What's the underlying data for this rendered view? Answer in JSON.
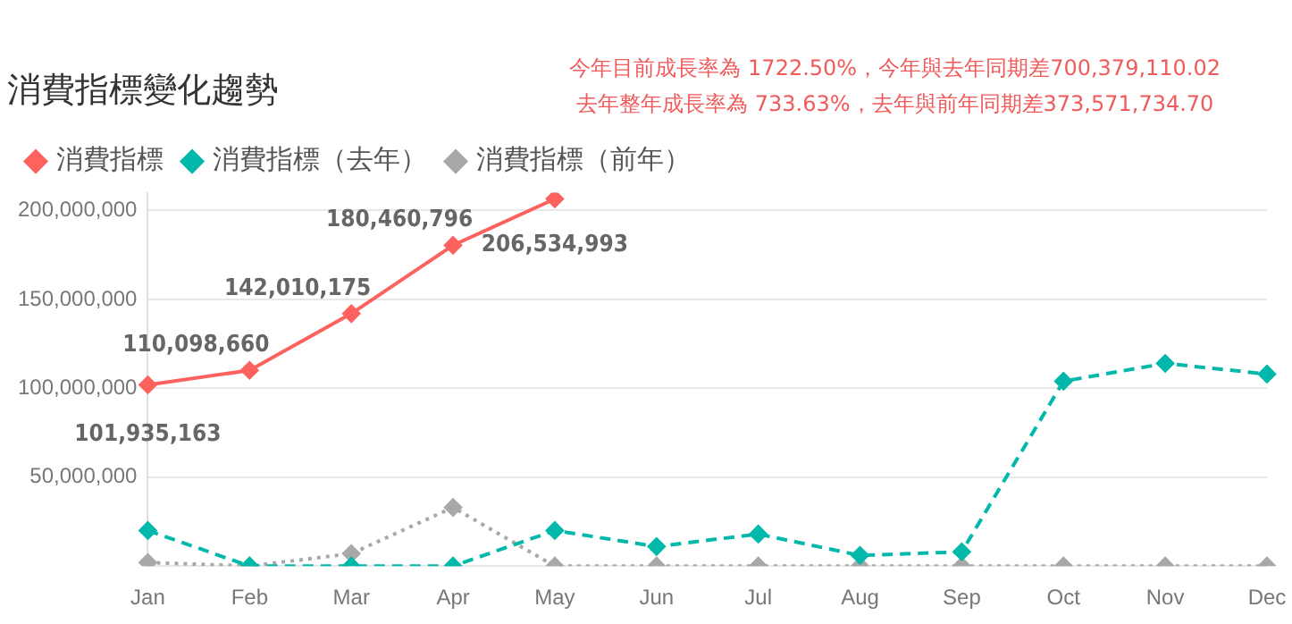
{
  "chart_data": {
    "type": "line",
    "title": "消費指標變化趨勢",
    "annotations": [
      "今年目前成長率為 1722.50%，今年與去年同期差700,379,110.02",
      "去年整年成長率為 733.63%，去年與前年同期差373,571,734.70"
    ],
    "categories": [
      "Jan",
      "Feb",
      "Mar",
      "Apr",
      "May",
      "Jun",
      "Jul",
      "Aug",
      "Sep",
      "Oct",
      "Nov",
      "Dec"
    ],
    "series": [
      {
        "name": "消費指標",
        "color": "#fd625e",
        "line_style": "solid",
        "values": [
          101935163,
          110098660,
          142010175,
          180460796,
          206534993,
          null,
          null,
          null,
          null,
          null,
          null,
          null
        ],
        "value_labels": [
          "101,935,163",
          "110,098,660",
          "142,010,175",
          "180,460,796",
          "206,534,993",
          null,
          null,
          null,
          null,
          null,
          null,
          null
        ]
      },
      {
        "name": "消費指標（去年）",
        "color": "#01b8aa",
        "line_style": "dashed",
        "values": [
          20000000,
          0,
          0,
          0,
          20000000,
          11000000,
          18000000,
          6000000,
          8000000,
          104000000,
          114000000,
          108000000
        ]
      },
      {
        "name": "消費指標（前年）",
        "color": "#a8a8a8",
        "line_style": "dotted",
        "values": [
          2000000,
          0,
          7000000,
          33000000,
          0,
          0,
          0,
          0,
          0,
          0,
          0,
          0
        ]
      }
    ],
    "ylim": [
      0,
      210000000
    ],
    "yticks": [
      {
        "value": 0,
        "label": null
      },
      {
        "value": 50000000,
        "label": "50,000,000"
      },
      {
        "value": 100000000,
        "label": "100,000,000"
      },
      {
        "value": 150000000,
        "label": "150,000,000"
      },
      {
        "value": 200000000,
        "label": "200,000,000"
      }
    ],
    "grid": "y",
    "legend": "top left",
    "marker": "diamond"
  }
}
